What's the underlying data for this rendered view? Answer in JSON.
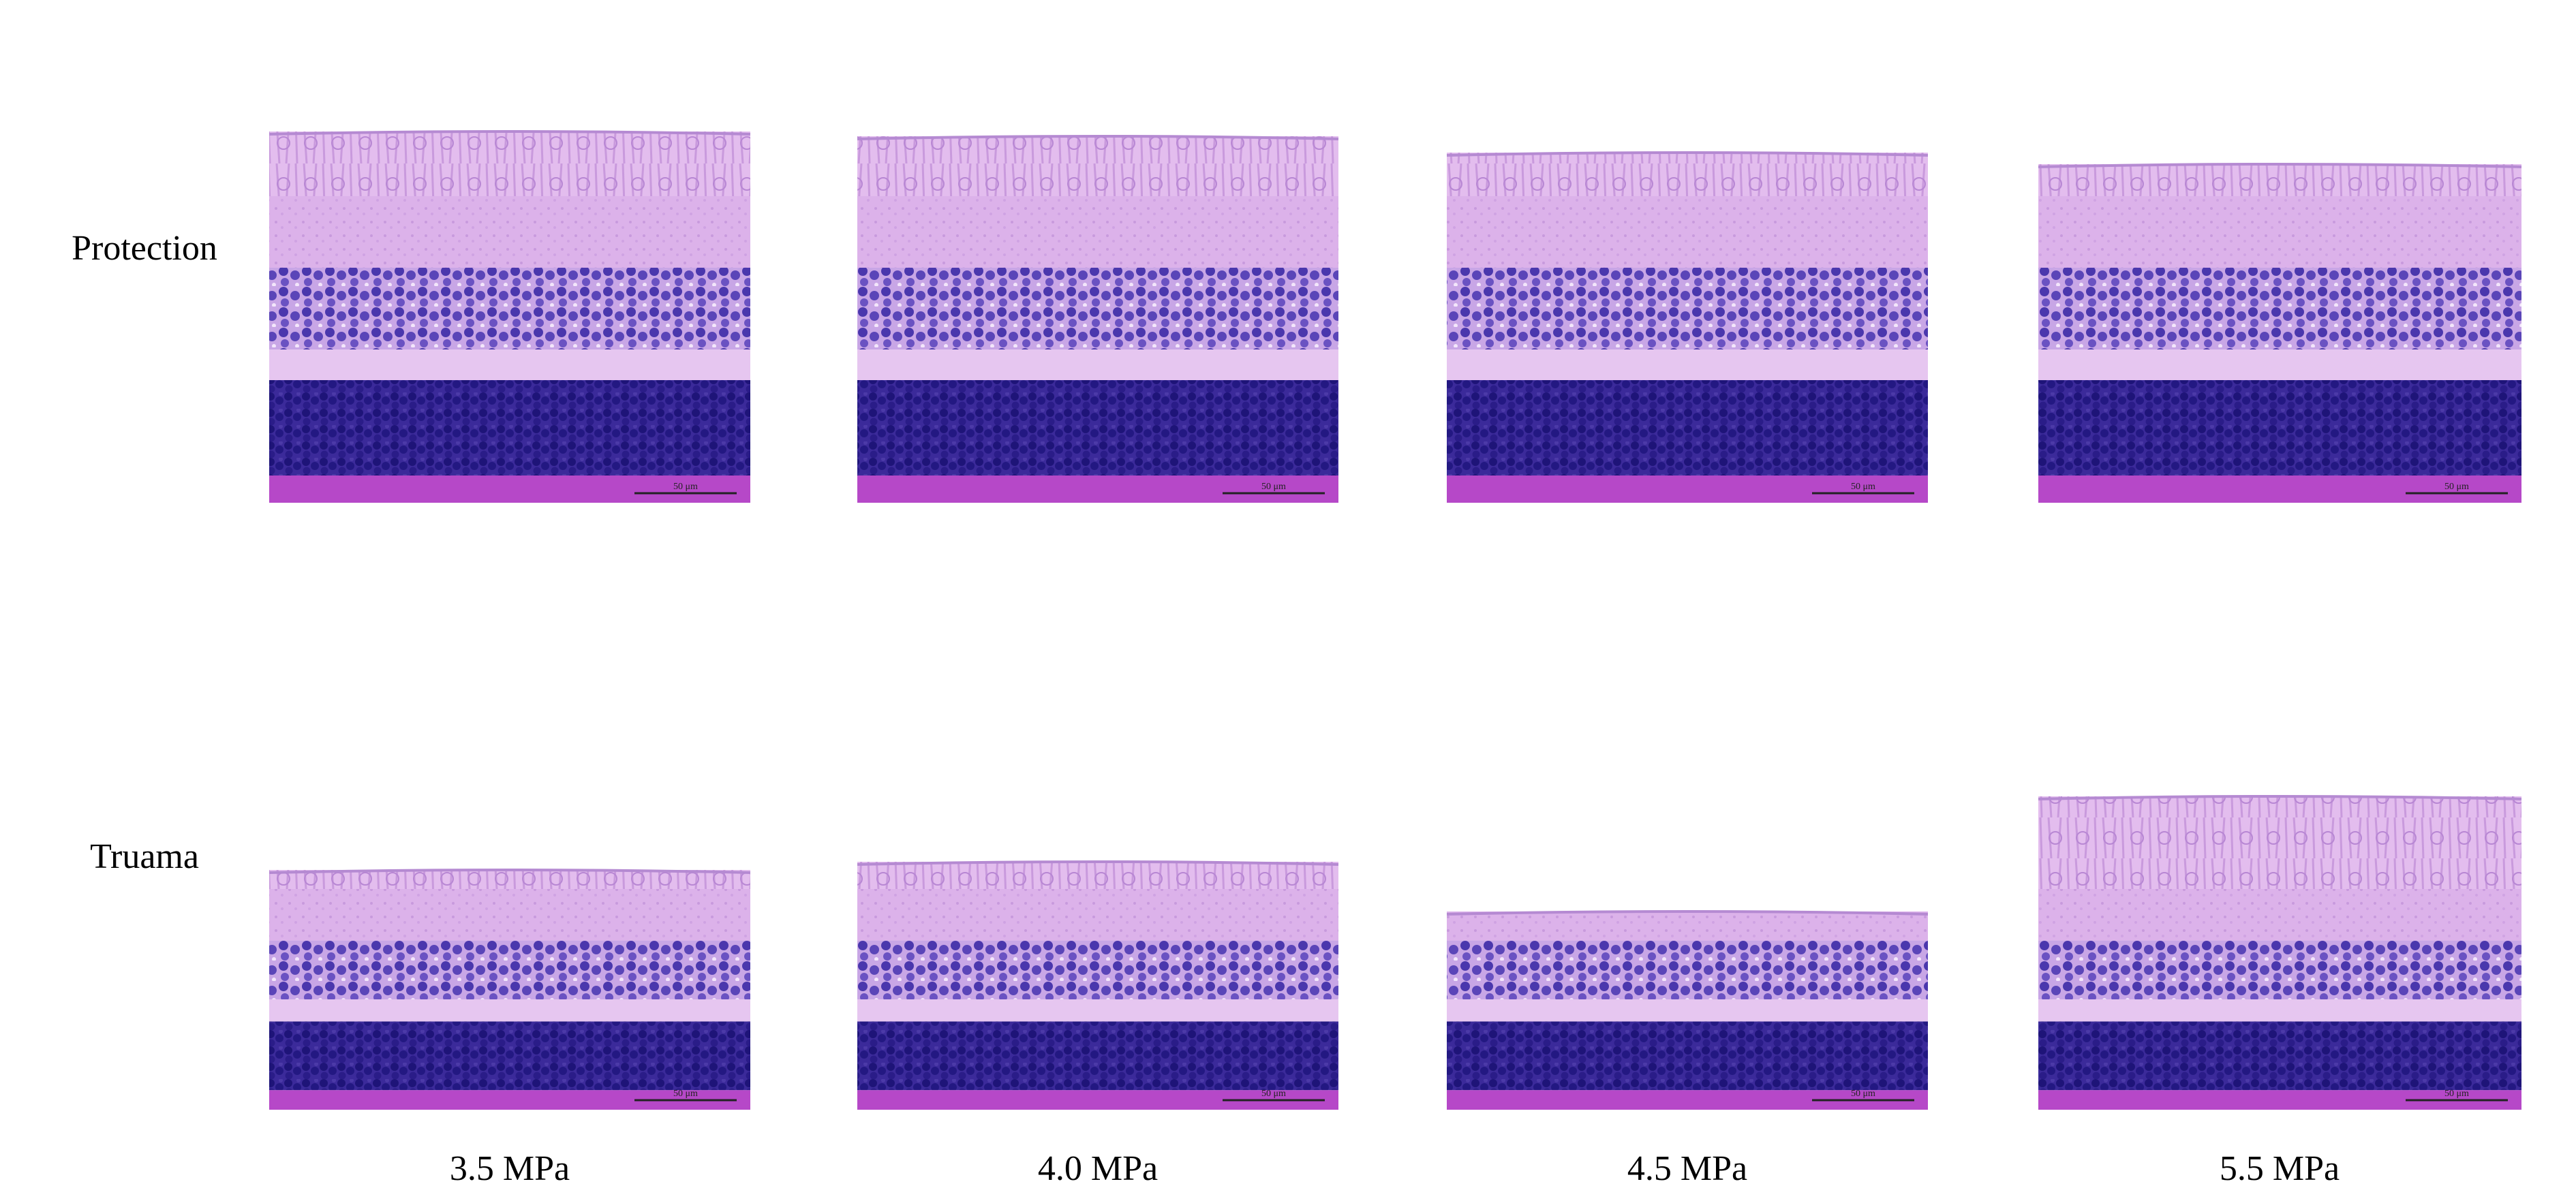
{
  "row_labels": [
    "Protection",
    "Truama"
  ],
  "column_labels": [
    "3.5 MPa",
    "4.0 MPa",
    "4.5 MPa",
    "5.5 MPa"
  ],
  "scale_bar": "50 μm"
}
